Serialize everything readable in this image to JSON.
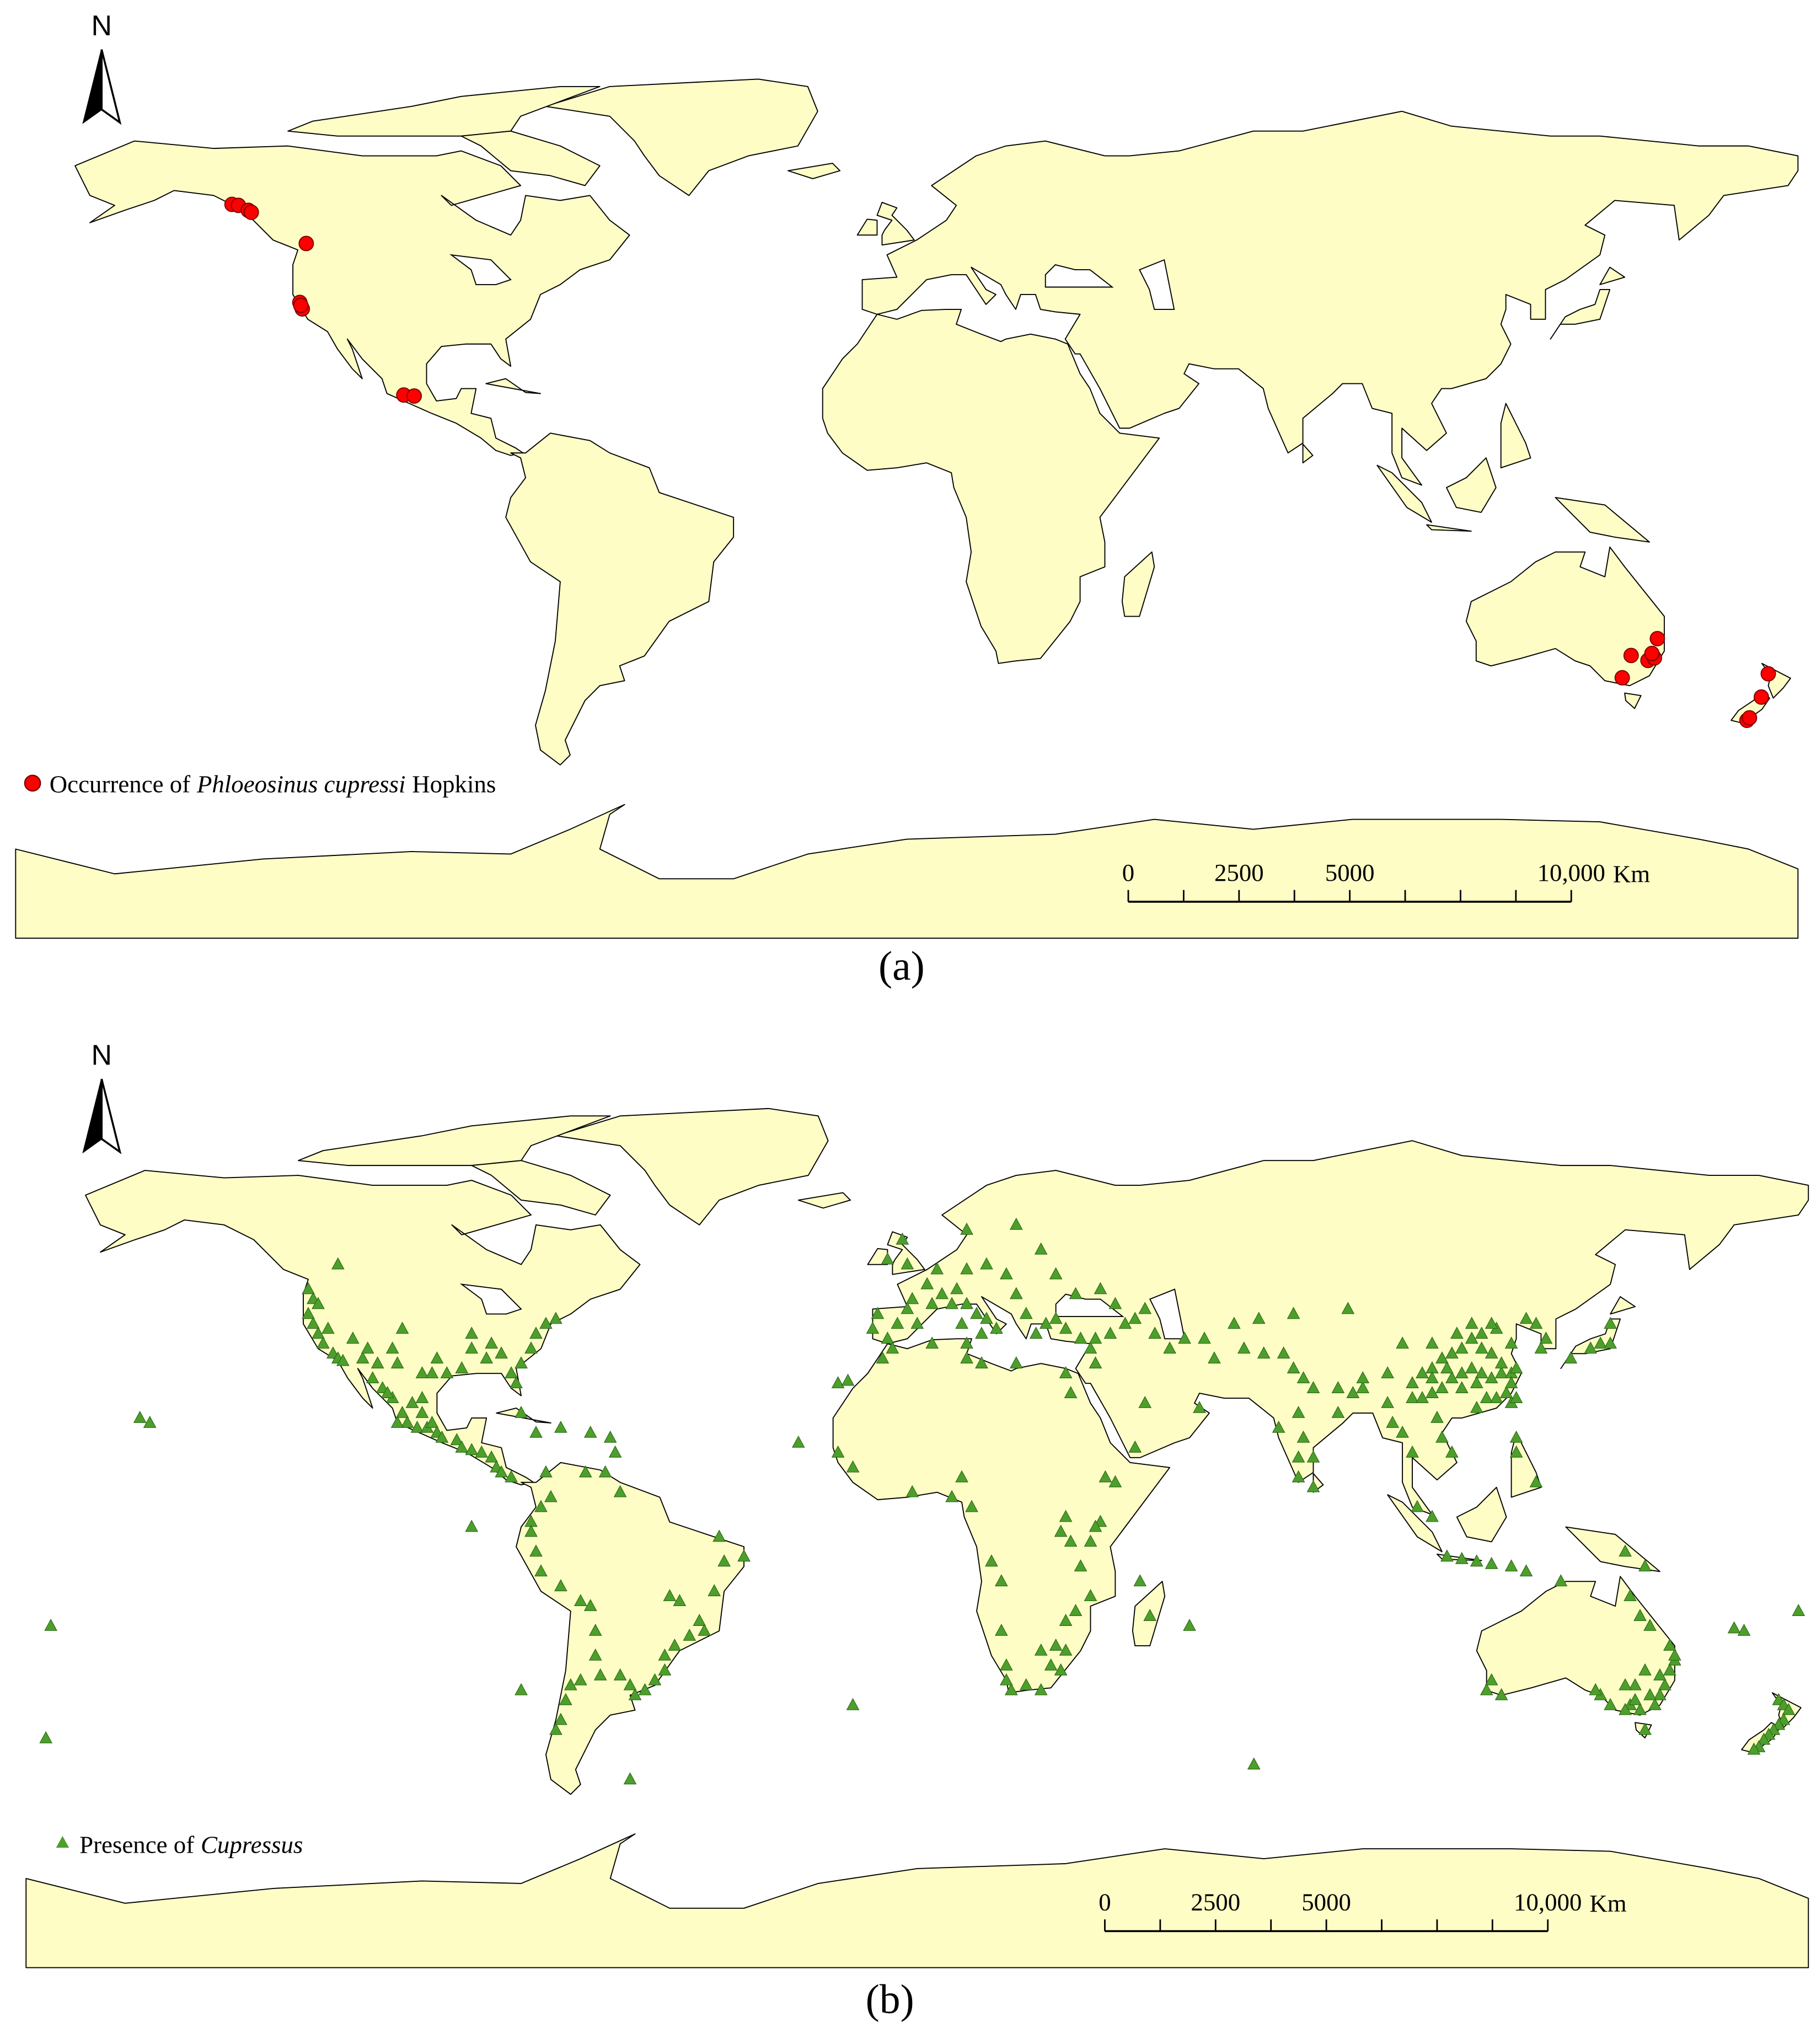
{
  "maps": [
    {
      "north_label": "N",
      "legend": {
        "prefix": "Occurrence of",
        "species": "Phloeosinus cupressi",
        "suffix": "Hopkins"
      },
      "marker": "circle",
      "color": "#ff0000",
      "points": {
        "lon": [
          -136.3,
          -135,
          -133,
          -132.4,
          -121.3,
          -122.6,
          -122.1,
          -122.4,
          -101.6,
          -99.5,
          151.6,
          146.3,
          149.7,
          151,
          150.5,
          144.5,
          174,
          172.6,
          169.7,
          170.2
        ],
        "lat": [
          58.2,
          58,
          57,
          56.6,
          50.3,
          38.4,
          37.1,
          37.8,
          19.7,
          19.5,
          -29.5,
          -32.9,
          -33.9,
          -33.4,
          -32.5,
          -37.4,
          -36.6,
          -41.3,
          -46,
          -45.5
        ]
      },
      "scale_bar": {
        "ticks": [
          0,
          1250,
          2500,
          3750,
          5000,
          6250,
          7500,
          8750,
          10000
        ],
        "labels": [
          0,
          2500,
          5000,
          {
            "value": 10000,
            "label": "10,000"
          }
        ],
        "unit": "Km"
      },
      "caption": "(a)"
    },
    {
      "north_label": "N",
      "legend": {
        "prefix": "Presence of",
        "species": "Cupressus"
      },
      "marker": "triangle",
      "color": "#4d9f2c",
      "points": {
        "lon": [
          -123,
          -122,
          -123,
          -122,
          -121,
          -120,
          -118,
          -117,
          -116,
          -121,
          -119,
          -112,
          -111,
          -109,
          -105,
          -104,
          -114,
          -106,
          -100,
          -98,
          -97,
          -95,
          -92,
          -90,
          -87,
          -84,
          -82,
          -81,
          -80,
          -78,
          -77,
          -75,
          -73,
          -86,
          -90,
          -117,
          -110,
          -108,
          -106,
          -104,
          -103,
          -101,
          -99,
          -98,
          -100,
          -97,
          -96,
          -93,
          -92,
          -90,
          -88,
          -86,
          -85,
          -84,
          -82,
          -100,
          -102,
          -105,
          -107,
          -77,
          -72,
          -66,
          -61,
          -80,
          -62,
          -24,
          -16,
          -14,
          -157,
          -155,
          -175,
          -176,
          -75,
          -74,
          -76,
          -78,
          -78,
          -77,
          -76,
          -72,
          -68,
          -66,
          -65,
          -65,
          -68,
          -70,
          -71,
          -72,
          -73,
          -67,
          -63,
          -60,
          -50,
          -48,
          -44,
          -43,
          -46,
          -49,
          -51,
          -51,
          -53,
          -55,
          -57,
          -58,
          -60,
          -64,
          -39,
          -35,
          -40,
          -41,
          -90,
          -80,
          -58,
          -9,
          -8,
          -6,
          -4,
          -2,
          0,
          -1,
          2,
          3,
          5,
          7,
          8,
          10,
          12,
          14,
          16,
          13,
          9,
          10,
          14,
          18,
          20,
          22,
          24,
          26,
          28,
          30,
          33,
          35,
          36,
          36,
          39,
          42,
          44,
          4,
          -2,
          -6,
          -3,
          20,
          10,
          25,
          28,
          32,
          37,
          40,
          46,
          48,
          51,
          54,
          58,
          60,
          66,
          70,
          74,
          76,
          78,
          80,
          -7,
          -5,
          3,
          10,
          10,
          13,
          20,
          30,
          31,
          46,
          44,
          57,
          38,
          40,
          37,
          36,
          35,
          33,
          35,
          32,
          30,
          28,
          30,
          25,
          27,
          29,
          22,
          19,
          25,
          18,
          18,
          17,
          31,
          29,
          30,
          9,
          7,
          -13,
          -16,
          -1,
          17,
          15,
          11,
          47,
          55,
          45,
          -13,
          68,
          73,
          77,
          77,
          80,
          80,
          78,
          77,
          85,
          88,
          85,
          90,
          95,
          96,
          98,
          100,
          105,
          106,
          108,
          101,
          104,
          107,
          110,
          113,
          116,
          120,
          123,
          121,
          121,
          125,
          120,
          121,
          138,
          140,
          136,
          132,
          140,
          127,
          126,
          125,
          143,
          147,
          100,
          102,
          104,
          106,
          108,
          110,
          112,
          114,
          116,
          118,
          120,
          118,
          116,
          114,
          112,
          110,
          108,
          106,
          104,
          102,
          100,
          104,
          107,
          110,
          113,
          115,
          113,
          117,
          119,
          120,
          121,
          117,
          116,
          114,
          120,
          123,
          90,
          95,
          98,
          104,
          109,
          112,
          87,
          76,
          69,
          64,
          153,
          152,
          151,
          150,
          149,
          146,
          144,
          143,
          140,
          138,
          147,
          147,
          145,
          148,
          153,
          152,
          146,
          144,
          116,
          115,
          118,
          130,
          137,
          143,
          145,
          148,
          150,
          174,
          175,
          176,
          175,
          174,
          173,
          172,
          171,
          170,
          169,
          165,
          167,
          178
        ],
        "lat": [
          47,
          45,
          42,
          40,
          38,
          36,
          34,
          33,
          32.5,
          44,
          39,
          33,
          35,
          32,
          32,
          39,
          37,
          35,
          30,
          30,
          33,
          30,
          31,
          35,
          33,
          34,
          30,
          28,
          32,
          35,
          38,
          40,
          41,
          36,
          38,
          52,
          29,
          27,
          25,
          22,
          20,
          19,
          19,
          20,
          22,
          18,
          17,
          16.5,
          15,
          14.5,
          14,
          13,
          11,
          10,
          9,
          25,
          24,
          20,
          26,
          18,
          19,
          18,
          14,
          22,
          17,
          16,
          28,
          28.5,
          21,
          20,
          -21,
          -43.7,
          10,
          5,
          3,
          0,
          -2,
          -6,
          -10,
          -13,
          -16,
          -17,
          -22,
          -27,
          -32,
          -33,
          -36,
          -40,
          -42,
          10,
          10,
          6,
          -15,
          -16,
          -20,
          -22,
          -23,
          -25,
          -27,
          -30,
          -32,
          -34,
          -35,
          -33,
          -31,
          -31,
          -8,
          -7,
          -3,
          -14,
          -1,
          -34,
          -52,
          39,
          42,
          37,
          40,
          43,
          40,
          45,
          48,
          44,
          46,
          44,
          47,
          44,
          42,
          41,
          39,
          38,
          40,
          51,
          52,
          50,
          46,
          42,
          38,
          40,
          41,
          39,
          37,
          35,
          32,
          37,
          38,
          40,
          41,
          51,
          52,
          53,
          57,
          60,
          59,
          55,
          50,
          46,
          47,
          44,
          43,
          38,
          35,
          37,
          37,
          33,
          35,
          34,
          34,
          31,
          29,
          27,
          33,
          35,
          36,
          36,
          33,
          32,
          32,
          30,
          26,
          24,
          15,
          23,
          9,
          8,
          0,
          -1,
          -4,
          -9,
          -15,
          -18,
          -20,
          -25,
          -26,
          -26,
          -29,
          -30,
          -33,
          -34,
          -34,
          -32,
          -29,
          -22,
          -4,
          -2,
          1,
          9,
          5,
          11,
          14,
          6,
          -12,
          -8,
          3,
          -19,
          -21,
          -12,
          -37,
          -49,
          19,
          13,
          9,
          7,
          13,
          17,
          22,
          22,
          26,
          27,
          27,
          24,
          20,
          18,
          14,
          21,
          17,
          14,
          3,
          1,
          -7,
          -7.5,
          -8,
          -8.5,
          -9,
          -10,
          14,
          17,
          8,
          24,
          25,
          36,
          36,
          35,
          33,
          40,
          37,
          35,
          40,
          -6,
          -9,
          25,
          25,
          26,
          27,
          29,
          30,
          31,
          30,
          29,
          30,
          30,
          32,
          34,
          35,
          37,
          35,
          34,
          33,
          31,
          30,
          28,
          29,
          31,
          27,
          28,
          25,
          23,
          25,
          26,
          28,
          31,
          39,
          40,
          38,
          36,
          41,
          29,
          30,
          36,
          36,
          38,
          40,
          43,
          42,
          41,
          40,
          -28,
          -30,
          -33,
          -35,
          -37,
          -38,
          -37,
          -38,
          -37,
          -35,
          -42,
          -30,
          -33,
          -21,
          -27,
          -25,
          -19,
          -15,
          -32,
          -34,
          -35,
          -12,
          -34,
          -33,
          -36,
          -35,
          -31,
          -36,
          -37,
          -38,
          -40,
          -41,
          -42,
          -43,
          -44,
          -45.5,
          -46,
          -21.5,
          -22,
          -18
        ]
      },
      "scale_bar": {
        "ticks": [
          0,
          1250,
          2500,
          3750,
          5000,
          6250,
          7500,
          8750,
          10000
        ],
        "labels": [
          0,
          2500,
          5000,
          {
            "value": 10000,
            "label": "10,000"
          }
        ],
        "unit": "Km"
      },
      "caption": "(b)"
    }
  ]
}
